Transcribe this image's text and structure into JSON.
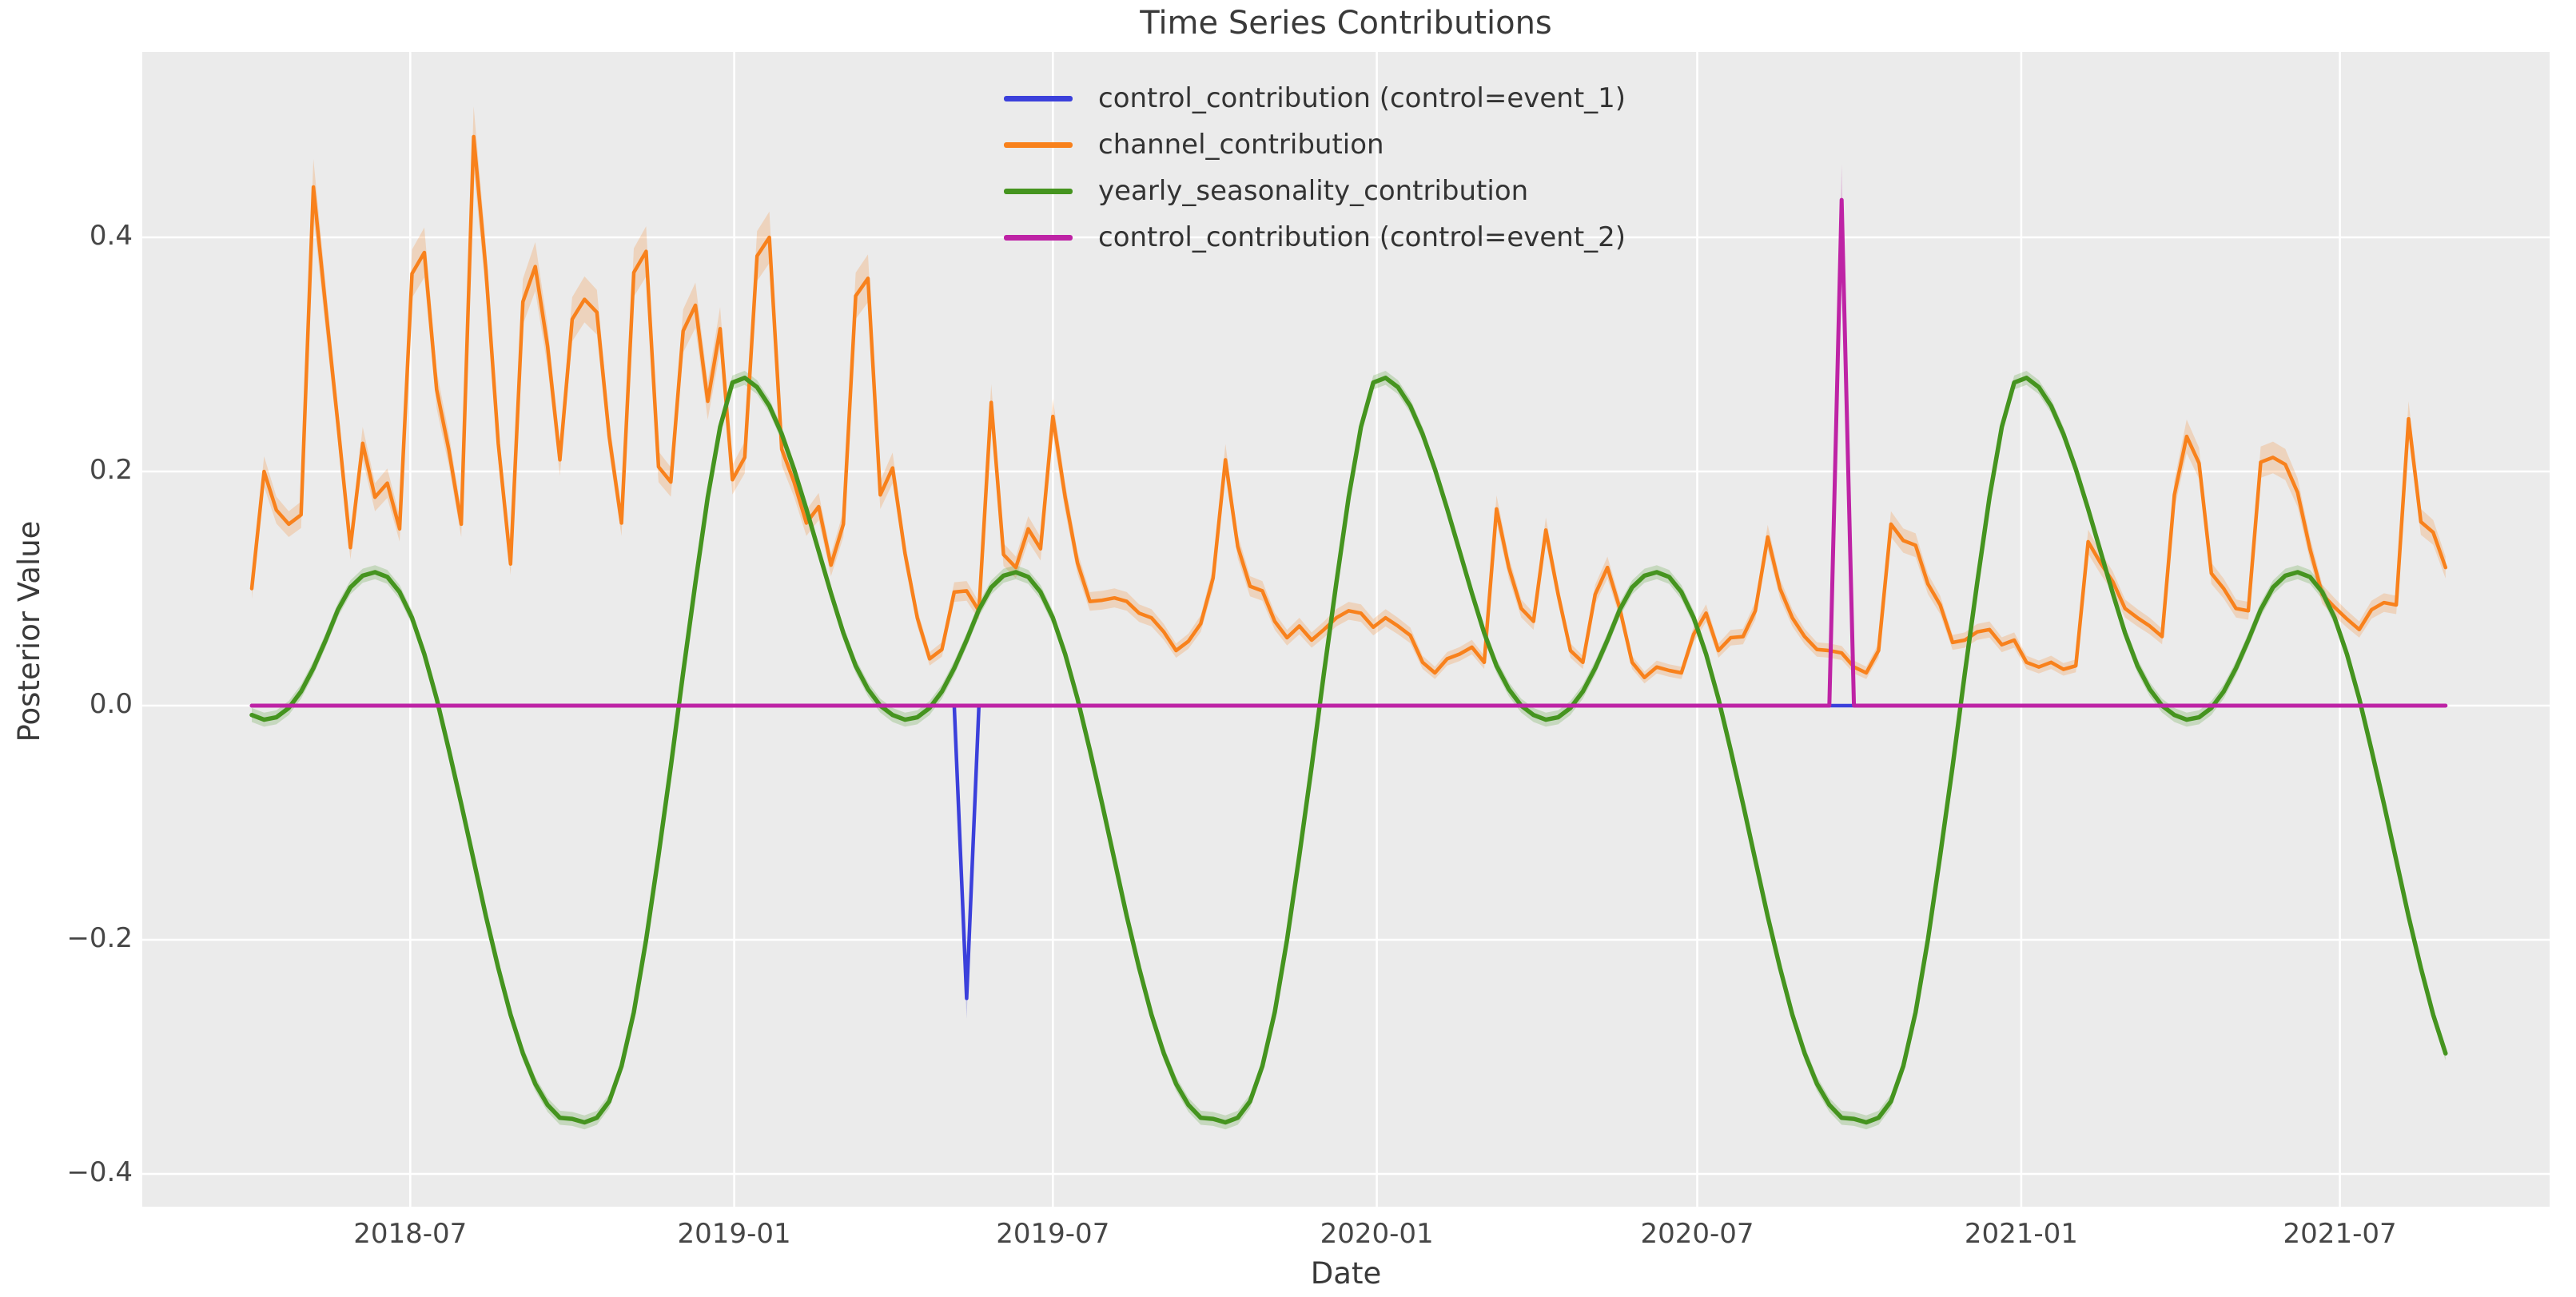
{
  "title": "Time Series Contributions",
  "x_axis": {
    "label": "Date",
    "ticks": [
      {
        "label": "2018-07",
        "date": "2018-07-01"
      },
      {
        "label": "2019-01",
        "date": "2019-01-01"
      },
      {
        "label": "2019-07",
        "date": "2019-07-01"
      },
      {
        "label": "2020-01",
        "date": "2020-01-01"
      },
      {
        "label": "2020-07",
        "date": "2020-07-01"
      },
      {
        "label": "2021-01",
        "date": "2021-01-01"
      },
      {
        "label": "2021-07",
        "date": "2021-07-01"
      }
    ]
  },
  "y_axis": {
    "label": "Posterior Value",
    "ticks": [
      {
        "label": "0.4",
        "value": 0.4
      },
      {
        "label": "0.2",
        "value": 0.2
      },
      {
        "label": "0.0",
        "value": 0.0
      },
      {
        "label": "−0.2",
        "value": -0.2
      },
      {
        "label": "−0.4",
        "value": -0.4
      }
    ]
  },
  "legend": [
    {
      "label": "control_contribution (control=event_1)",
      "color": "#3b40db"
    },
    {
      "label": "channel_contribution",
      "color": "#f8811c"
    },
    {
      "label": "yearly_seasonality_contribution",
      "color": "#45941f"
    },
    {
      "label": "control_contribution (control=event_2)",
      "color": "#be23a5"
    }
  ],
  "style": {
    "plot_background": "#ebebeb",
    "figure_background": "#ffffff",
    "grid_color": "#ffffff",
    "text_color": "#3a3a3a"
  },
  "chart_data": {
    "type": "line",
    "title": "Time Series Contributions",
    "xlabel": "Date",
    "ylabel": "Posterior Value",
    "grid": true,
    "legend_position": "upper center",
    "ylim": [
      -0.428,
      0.558
    ],
    "xlim": [
      "2018-01-30",
      "2021-10-31"
    ],
    "x": {
      "start": "2018-04-02",
      "freq_days": 7,
      "n": 179
    },
    "series": [
      {
        "name": "control_contribution (control=event_1)",
        "color": "#3b40db",
        "width": 4.5,
        "baseline": 0,
        "spikes": [
          {
            "index": 58,
            "date": "2019-05-13",
            "value": -0.25
          }
        ],
        "band": {
          "base": 0.0,
          "factor": 0.07
        }
      },
      {
        "name": "channel_contribution",
        "color": "#f8811c",
        "width": 4.5,
        "band": {
          "base": 0.004,
          "factor": 0.045
        },
        "values": [
          0.1,
          0.2,
          0.167,
          0.155,
          0.163,
          0.443,
          0.34,
          0.24,
          0.135,
          0.224,
          0.178,
          0.19,
          0.151,
          0.369,
          0.387,
          0.27,
          0.218,
          0.155,
          0.486,
          0.372,
          0.224,
          0.121,
          0.345,
          0.375,
          0.307,
          0.21,
          0.33,
          0.347,
          0.336,
          0.23,
          0.156,
          0.37,
          0.388,
          0.204,
          0.191,
          0.32,
          0.342,
          0.26,
          0.322,
          0.193,
          0.212,
          0.384,
          0.4,
          0.219,
          0.191,
          0.156,
          0.17,
          0.12,
          0.155,
          0.35,
          0.365,
          0.18,
          0.203,
          0.13,
          0.075,
          0.04,
          0.048,
          0.097,
          0.098,
          0.081,
          0.259,
          0.129,
          0.118,
          0.151,
          0.134,
          0.247,
          0.178,
          0.122,
          0.089,
          0.09,
          0.092,
          0.089,
          0.079,
          0.075,
          0.063,
          0.047,
          0.055,
          0.07,
          0.109,
          0.21,
          0.136,
          0.102,
          0.098,
          0.072,
          0.058,
          0.068,
          0.056,
          0.065,
          0.075,
          0.081,
          0.079,
          0.067,
          0.075,
          0.068,
          0.06,
          0.037,
          0.028,
          0.04,
          0.044,
          0.05,
          0.037,
          0.168,
          0.118,
          0.083,
          0.072,
          0.15,
          0.095,
          0.047,
          0.037,
          0.095,
          0.118,
          0.083,
          0.037,
          0.024,
          0.033,
          0.03,
          0.028,
          0.061,
          0.079,
          0.047,
          0.058,
          0.059,
          0.081,
          0.144,
          0.1,
          0.075,
          0.059,
          0.048,
          0.047,
          0.045,
          0.033,
          0.028,
          0.047,
          0.155,
          0.141,
          0.137,
          0.104,
          0.086,
          0.054,
          0.056,
          0.063,
          0.065,
          0.052,
          0.056,
          0.037,
          0.033,
          0.037,
          0.031,
          0.034,
          0.14,
          0.122,
          0.106,
          0.083,
          0.075,
          0.068,
          0.059,
          0.18,
          0.23,
          0.207,
          0.113,
          0.1,
          0.083,
          0.081,
          0.208,
          0.212,
          0.206,
          0.182,
          0.134,
          0.095,
          0.084,
          0.074,
          0.065,
          0.082,
          0.088,
          0.086,
          0.245,
          0.157,
          0.148,
          0.118
        ]
      },
      {
        "name": "yearly_seasonality_contribution",
        "color": "#45941f",
        "width": 5.5,
        "band": {
          "base": 0.006,
          "factor": 0.0
        },
        "values": [
          -0.008,
          -0.012,
          -0.01,
          -0.002,
          0.012,
          0.032,
          0.056,
          0.082,
          0.101,
          0.111,
          0.114,
          0.11,
          0.097,
          0.075,
          0.044,
          0.006,
          -0.038,
          -0.084,
          -0.132,
          -0.18,
          -0.224,
          -0.264,
          -0.297,
          -0.323,
          -0.341,
          -0.352,
          -0.353,
          -0.356,
          -0.352,
          -0.338,
          -0.308,
          -0.262,
          -0.2,
          -0.128,
          -0.052,
          0.028,
          0.105,
          0.178,
          0.238,
          0.276,
          0.28,
          0.272,
          0.256,
          0.232,
          0.202,
          0.168,
          0.132,
          0.096,
          0.062,
          0.034,
          0.014,
          0.0,
          -0.008,
          -0.012,
          -0.01,
          -0.002,
          0.012,
          0.032,
          0.056,
          0.082,
          0.101,
          0.111,
          0.114,
          0.11,
          0.097,
          0.075,
          0.044,
          0.006,
          -0.038,
          -0.084,
          -0.132,
          -0.18,
          -0.224,
          -0.264,
          -0.297,
          -0.323,
          -0.341,
          -0.352,
          -0.353,
          -0.356,
          -0.352,
          -0.338,
          -0.308,
          -0.262,
          -0.2,
          -0.128,
          -0.052,
          0.028,
          0.105,
          0.178,
          0.238,
          0.276,
          0.28,
          0.272,
          0.256,
          0.232,
          0.202,
          0.168,
          0.132,
          0.096,
          0.062,
          0.034,
          0.014,
          0.0,
          -0.008,
          -0.012,
          -0.01,
          -0.002,
          0.012,
          0.032,
          0.056,
          0.082,
          0.101,
          0.111,
          0.114,
          0.11,
          0.097,
          0.075,
          0.044,
          0.006,
          -0.038,
          -0.084,
          -0.132,
          -0.18,
          -0.224,
          -0.264,
          -0.297,
          -0.323,
          -0.341,
          -0.352,
          -0.353,
          -0.356,
          -0.352,
          -0.338,
          -0.308,
          -0.262,
          -0.2,
          -0.128,
          -0.052,
          0.028,
          0.105,
          0.178,
          0.238,
          0.276,
          0.28,
          0.272,
          0.256,
          0.232,
          0.202,
          0.168,
          0.132,
          0.096,
          0.062,
          0.034,
          0.014,
          0.0,
          -0.008,
          -0.012,
          -0.01,
          -0.002,
          0.012,
          0.032,
          0.056,
          0.082,
          0.101,
          0.111,
          0.114,
          0.11,
          0.097,
          0.075,
          0.044,
          0.006,
          -0.038,
          -0.084,
          -0.132,
          -0.18,
          -0.224,
          -0.264,
          -0.297
        ]
      },
      {
        "name": "control_contribution (control=event_2)",
        "color": "#be23a5",
        "width": 5,
        "baseline": 0,
        "spikes": [
          {
            "index": 129,
            "date": "2020-09-21",
            "value": 0.432
          }
        ],
        "band": {
          "base": 0.0,
          "factor": 0.07
        }
      }
    ]
  }
}
